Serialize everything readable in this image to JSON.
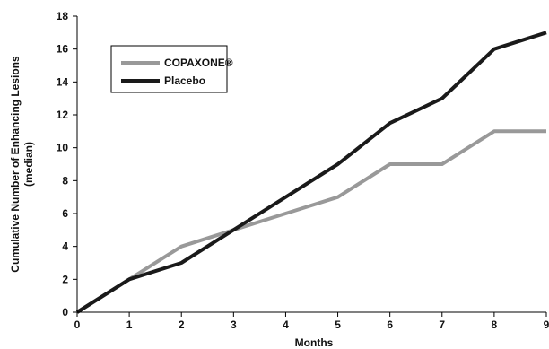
{
  "chart_data": {
    "type": "line",
    "xlabel": "Months",
    "ylabel_line1": "Cumulative Number of Enhancing Lesions",
    "ylabel_line2": "(median)",
    "xlim": [
      0,
      9
    ],
    "ylim": [
      0,
      18
    ],
    "x_ticks": [
      "0",
      "1",
      "2",
      "3",
      "4",
      "5",
      "6",
      "7",
      "8",
      "9"
    ],
    "y_ticks": [
      "0",
      "2",
      "4",
      "6",
      "8",
      "10",
      "12",
      "14",
      "16",
      "18"
    ],
    "grid": false,
    "legend_position": "top-left",
    "x": [
      0,
      1,
      2,
      3,
      4,
      5,
      6,
      7,
      8,
      9
    ],
    "series": [
      {
        "name": "COPAXONE®",
        "color": "#999999",
        "values": [
          0,
          2,
          4,
          5,
          6,
          7,
          9,
          9,
          11,
          11
        ]
      },
      {
        "name": "Placebo",
        "color": "#1a1a1a",
        "values": [
          0,
          2,
          3,
          5,
          7,
          9,
          11.5,
          13,
          16,
          17
        ]
      }
    ]
  }
}
